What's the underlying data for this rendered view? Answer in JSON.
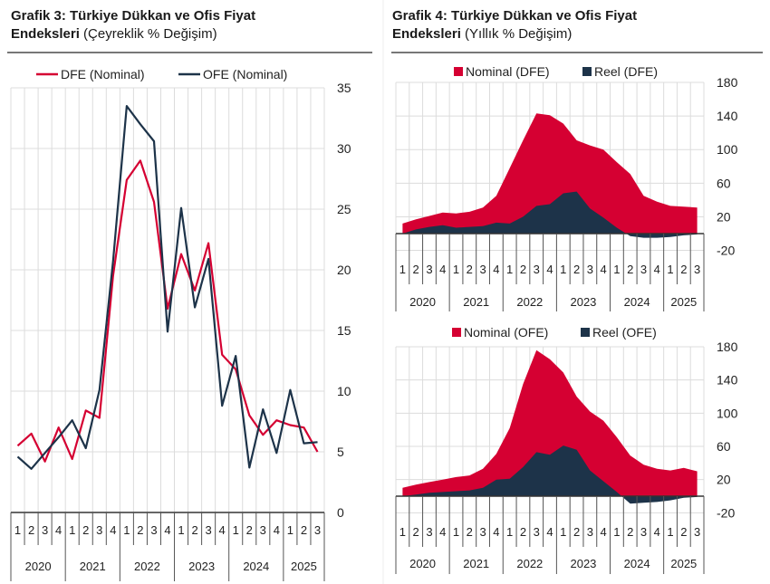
{
  "colors": {
    "red": "#d50032",
    "navy": "#1d3349",
    "grid": "#dcdcdc",
    "axis": "#333333"
  },
  "chart_data": [
    {
      "type": "line",
      "title_bold": "Grafik 3: Türkiye Dükkan ve Ofis Fiyat Endeksleri",
      "title_normal": "(Çeyreklik % Değişim)",
      "title_line1": "Grafik 3: Türkiye Dükkan ve Ofis Fiyat",
      "title_line2_bold": "Endeksleri",
      "quarters": [
        "1",
        "2",
        "3",
        "4",
        "1",
        "2",
        "3",
        "4",
        "1",
        "2",
        "3",
        "4",
        "1",
        "2",
        "3",
        "4",
        "1",
        "2",
        "3",
        "4",
        "1",
        "2",
        "3"
      ],
      "years": [
        "2020",
        "2021",
        "2022",
        "2023",
        "2024",
        "2025"
      ],
      "ylim": [
        0,
        35
      ],
      "yticks": [
        0,
        5,
        10,
        15,
        20,
        25,
        30,
        35
      ],
      "y_axis_side": "right",
      "grid": true,
      "legend_position": "top",
      "series": [
        {
          "name": "DFE (Nominal)",
          "color": "#d50032",
          "values": [
            5.5,
            6.5,
            4.2,
            7.0,
            4.4,
            8.4,
            7.8,
            19.5,
            27.4,
            29.0,
            25.6,
            16.8,
            21.3,
            18.3,
            22.2,
            13.0,
            11.8,
            8.0,
            6.4,
            7.6,
            7.2,
            7.0,
            5.0
          ]
        },
        {
          "name": "OFE (Nominal)",
          "color": "#1d3349",
          "values": [
            4.6,
            3.6,
            4.9,
            6.2,
            7.6,
            5.3,
            10.1,
            20.7,
            33.5,
            32.0,
            30.6,
            14.9,
            25.1,
            16.9,
            20.9,
            8.8,
            12.9,
            3.7,
            8.5,
            4.9,
            10.1,
            5.7,
            5.8
          ]
        }
      ]
    },
    {
      "type": "area",
      "title_line1": "Grafik 4: Türkiye Dükkan ve Ofis Fiyat",
      "title_line2_bold": "Endeksleri",
      "title_normal": "(Yıllık % Değişim)",
      "quarters": [
        "1",
        "2",
        "3",
        "4",
        "1",
        "2",
        "3",
        "4",
        "1",
        "2",
        "3",
        "4",
        "1",
        "2",
        "3",
        "4",
        "1",
        "2",
        "3",
        "4",
        "1",
        "2",
        "3"
      ],
      "years": [
        "2020",
        "2021",
        "2022",
        "2023",
        "2024",
        "2025"
      ],
      "ylim": [
        -20,
        180
      ],
      "yticks": [
        -20,
        20,
        60,
        100,
        140,
        180
      ],
      "y_axis_side": "right",
      "grid": true,
      "legend_position": "top",
      "series": [
        {
          "name": "Nominal (DFE)",
          "color": "#d50032",
          "values": [
            12,
            17,
            21,
            25,
            24,
            26,
            31,
            45,
            78,
            111,
            143,
            141,
            131,
            111,
            105,
            100,
            85,
            71,
            45,
            38,
            33,
            32,
            31
          ]
        },
        {
          "name": "Reel (DFE)",
          "color": "#1d3349",
          "values": [
            0,
            5,
            8,
            10,
            7,
            8,
            9,
            13,
            12,
            20,
            33,
            35,
            48,
            50,
            30,
            19,
            7,
            -3,
            -5,
            -5,
            -4,
            -2,
            -1
          ]
        }
      ]
    },
    {
      "type": "area",
      "quarters": [
        "1",
        "2",
        "3",
        "4",
        "1",
        "2",
        "3",
        "4",
        "1",
        "2",
        "3",
        "4",
        "1",
        "2",
        "3",
        "4",
        "1",
        "2",
        "3",
        "4",
        "1",
        "2",
        "3"
      ],
      "years": [
        "2020",
        "2021",
        "2022",
        "2023",
        "2024",
        "2025"
      ],
      "ylim": [
        -20,
        180
      ],
      "yticks": [
        -20,
        20,
        60,
        100,
        140,
        180
      ],
      "y_axis_side": "right",
      "grid": true,
      "legend_position": "top",
      "series": [
        {
          "name": "Nominal (OFE)",
          "color": "#d50032",
          "values": [
            10,
            14,
            17,
            20,
            23,
            25,
            33,
            51,
            82,
            135,
            176,
            165,
            149,
            120,
            102,
            91,
            71,
            49,
            38,
            33,
            31,
            34,
            30
          ]
        },
        {
          "name": "Reel (OFE)",
          "color": "#1d3349",
          "values": [
            0,
            2,
            4,
            5,
            6,
            7,
            10,
            20,
            21,
            35,
            53,
            50,
            61,
            56,
            31,
            18,
            5,
            -9,
            -8,
            -7,
            -5,
            -2,
            -1
          ]
        }
      ]
    }
  ]
}
